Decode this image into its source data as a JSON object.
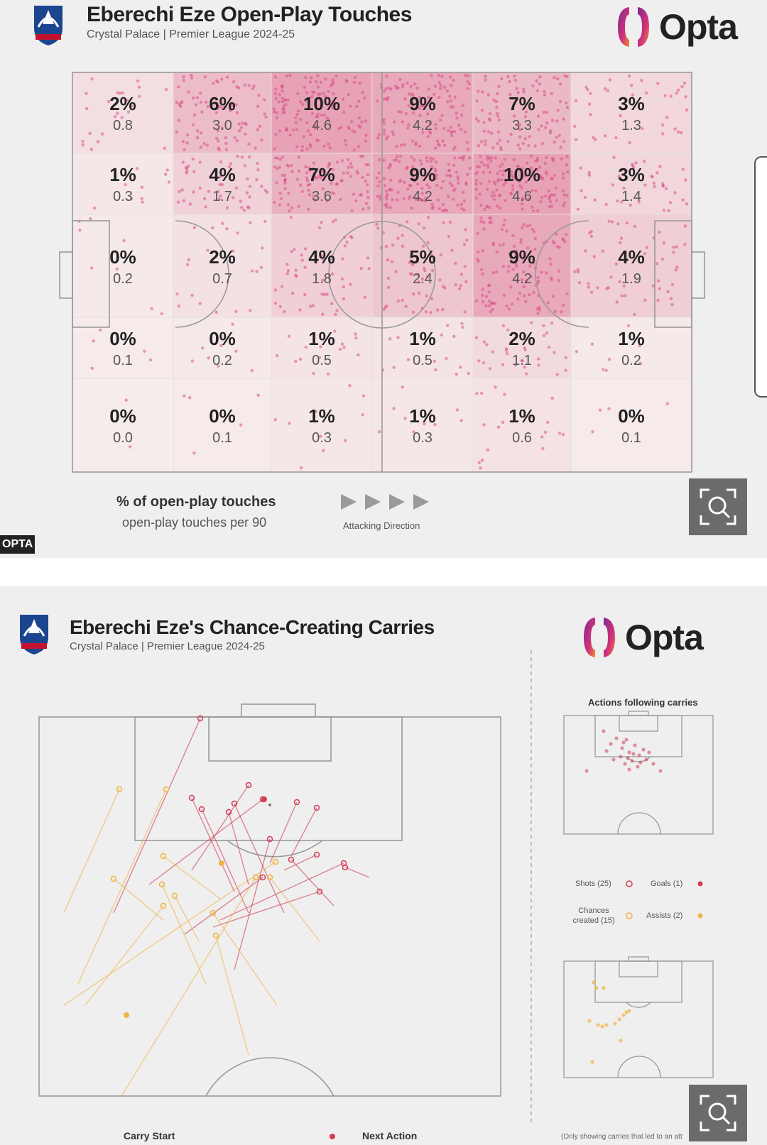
{
  "panel1": {
    "title": "Eberechi Eze Open-Play Touches",
    "subtitle": "Crystal Palace | Premier League 2024-25",
    "logo_text": "Opta",
    "grid": [
      [
        {
          "pct": "2%",
          "p90": "0.8"
        },
        {
          "pct": "6%",
          "p90": "3.0"
        },
        {
          "pct": "10%",
          "p90": "4.6"
        },
        {
          "pct": "9%",
          "p90": "4.2"
        },
        {
          "pct": "7%",
          "p90": "3.3"
        },
        {
          "pct": "3%",
          "p90": "1.3"
        }
      ],
      [
        {
          "pct": "1%",
          "p90": "0.3"
        },
        {
          "pct": "4%",
          "p90": "1.7"
        },
        {
          "pct": "7%",
          "p90": "3.6"
        },
        {
          "pct": "9%",
          "p90": "4.2"
        },
        {
          "pct": "10%",
          "p90": "4.6"
        },
        {
          "pct": "3%",
          "p90": "1.4"
        }
      ],
      [
        {
          "pct": "0%",
          "p90": "0.2"
        },
        {
          "pct": "2%",
          "p90": "0.7"
        },
        {
          "pct": "4%",
          "p90": "1.8"
        },
        {
          "pct": "5%",
          "p90": "2.4"
        },
        {
          "pct": "9%",
          "p90": "4.2"
        },
        {
          "pct": "4%",
          "p90": "1.9"
        }
      ],
      [
        {
          "pct": "0%",
          "p90": "0.1"
        },
        {
          "pct": "0%",
          "p90": "0.2"
        },
        {
          "pct": "1%",
          "p90": "0.5"
        },
        {
          "pct": "1%",
          "p90": "0.5"
        },
        {
          "pct": "2%",
          "p90": "1.1"
        },
        {
          "pct": "1%",
          "p90": "0.2"
        }
      ],
      [
        {
          "pct": "0%",
          "p90": "0.0"
        },
        {
          "pct": "0%",
          "p90": "0.1"
        },
        {
          "pct": "1%",
          "p90": "0.3"
        },
        {
          "pct": "1%",
          "p90": "0.3"
        },
        {
          "pct": "1%",
          "p90": "0.6"
        },
        {
          "pct": "0%",
          "p90": "0.1"
        }
      ]
    ],
    "legend_pct": "% of open-play touches",
    "legend_p90": "open-play touches per 90",
    "attacking_direction": "Attacking Direction",
    "opta_tag": "OPTA"
  },
  "panel2": {
    "title": "Eberechi Eze's Chance-Creating Carries",
    "subtitle": "Crystal Palace | Premier League 2024-25",
    "logo_text": "Opta",
    "actions_title": "Actions following carries",
    "legend": {
      "shots": "Shots (25)",
      "goals": "Goals (1)",
      "chances": "Chances created (15)",
      "assists": "Assists (2)"
    },
    "carry_start": "Carry Start",
    "next_action": "Next Action",
    "footnote": "(Only showing carries that led to an att"
  },
  "colors": {
    "heat_low": "#f6ecec",
    "heat_high": "#e7a3b5",
    "shot": "#d23c55",
    "chance": "#efb443",
    "dot": "#d84f8c"
  }
}
